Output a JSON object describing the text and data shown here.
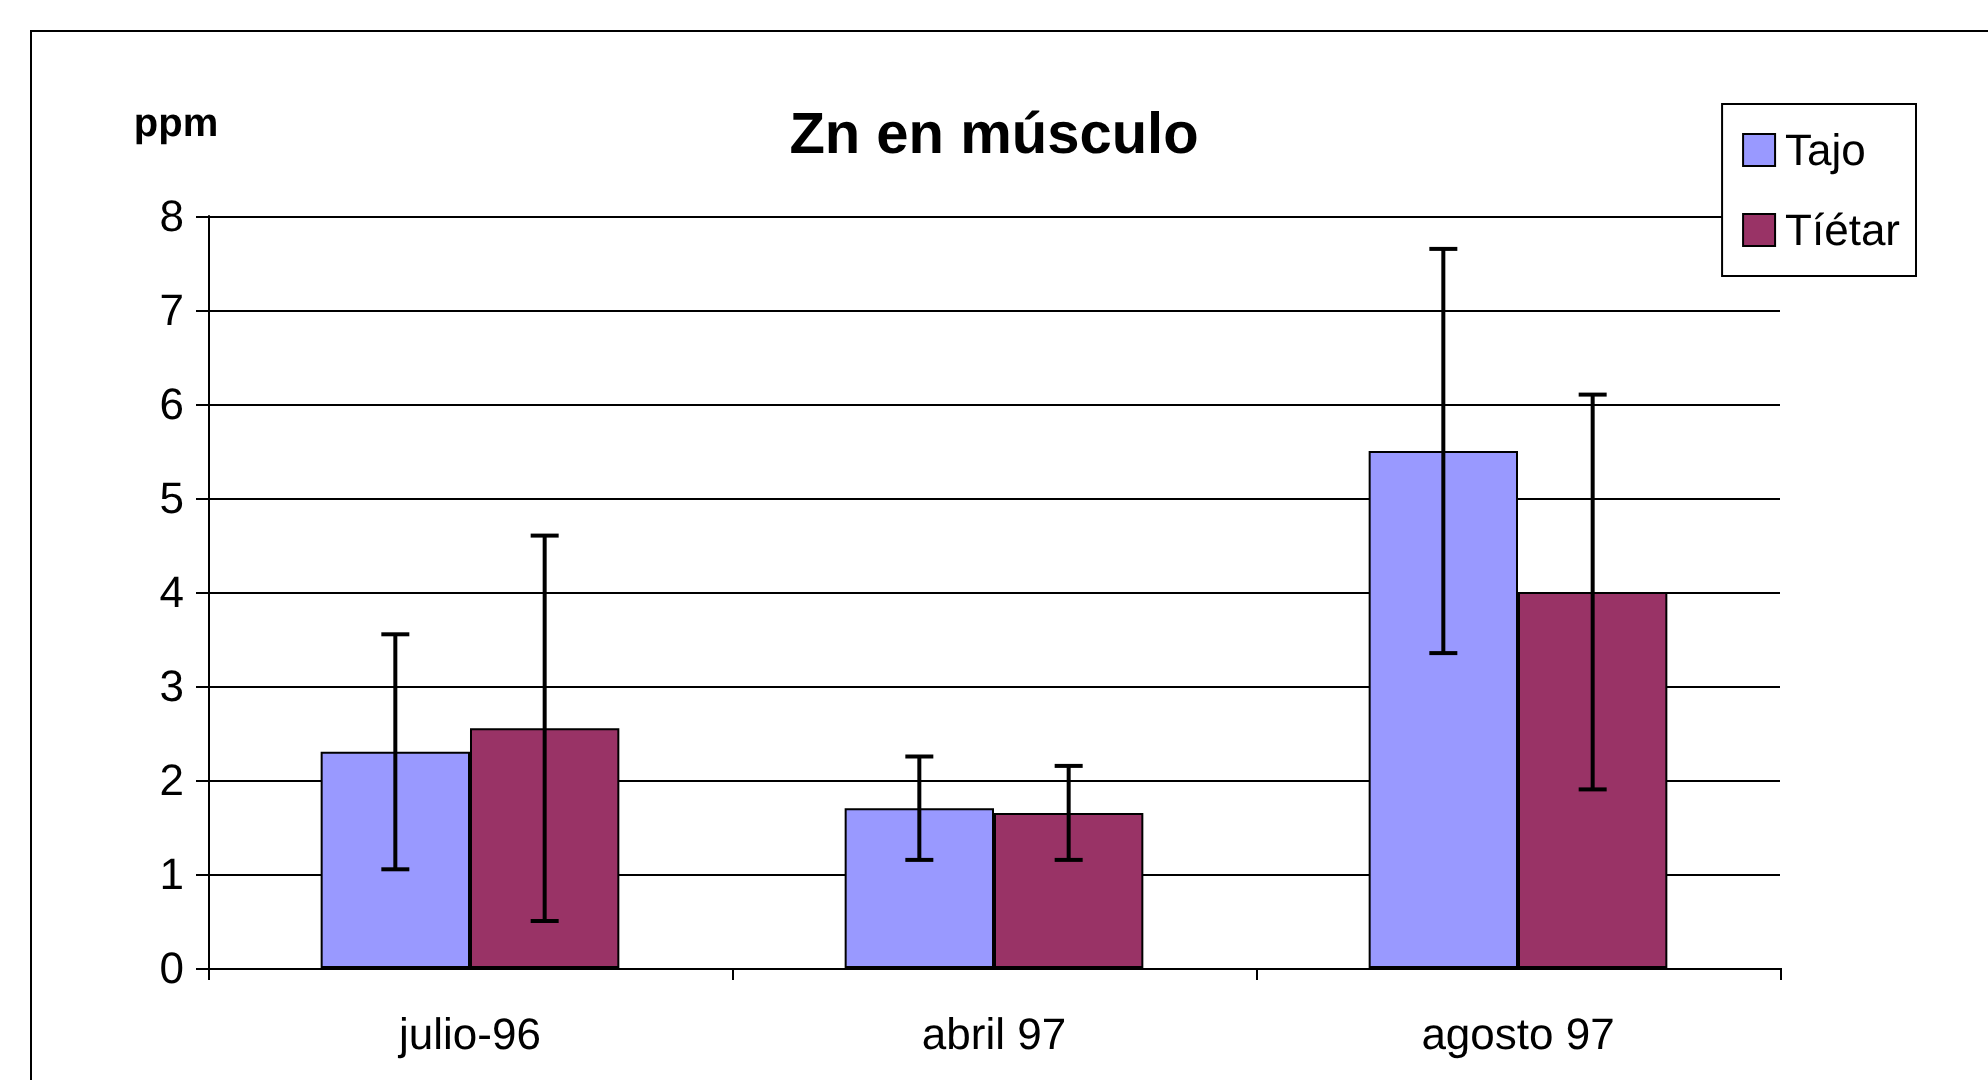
{
  "chart_data": {
    "type": "bar",
    "title": "Zn en músculo",
    "ylabel": "ppm",
    "categories": [
      "julio-96",
      "abril 97",
      "agosto 97"
    ],
    "series": [
      {
        "name": "Tajo",
        "color": "#9999ff",
        "values": [
          2.3,
          1.7,
          5.5
        ],
        "errors": [
          1.25,
          0.55,
          2.15
        ]
      },
      {
        "name": "Tíétar",
        "color": "#993366",
        "values": [
          2.55,
          1.65,
          4.0
        ],
        "errors": [
          2.05,
          0.5,
          2.1
        ]
      }
    ],
    "ylim": [
      0,
      8
    ],
    "yticks": [
      0,
      1,
      2,
      3,
      4,
      5,
      6,
      7,
      8
    ],
    "grid": "y",
    "legend": "top right"
  }
}
